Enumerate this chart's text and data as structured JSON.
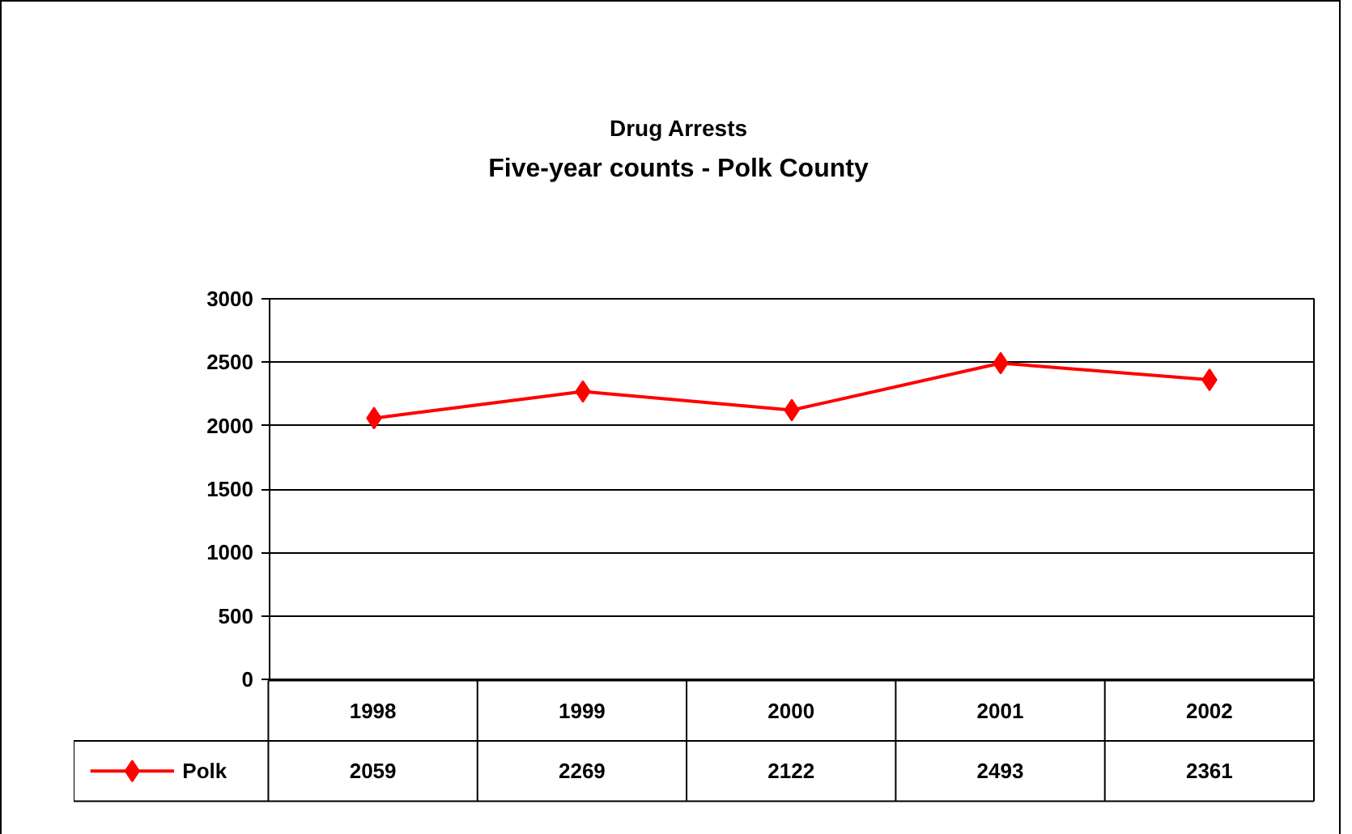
{
  "chart_data": {
    "type": "line",
    "title": "Drug Arrests",
    "subtitle": "Five-year counts - Polk County",
    "categories": [
      "1998",
      "1999",
      "2000",
      "2001",
      "2002"
    ],
    "series": [
      {
        "name": "Polk",
        "color": "#ff0000",
        "values": [
          2059,
          2269,
          2122,
          2493,
          2361
        ]
      }
    ],
    "ylim": [
      0,
      3000
    ],
    "yticks": [
      0,
      500,
      1000,
      1500,
      2000,
      2500,
      3000
    ],
    "grid": "y",
    "marker": "diamond",
    "line_style": "solid",
    "data_labels": true,
    "legend": "bottom"
  }
}
